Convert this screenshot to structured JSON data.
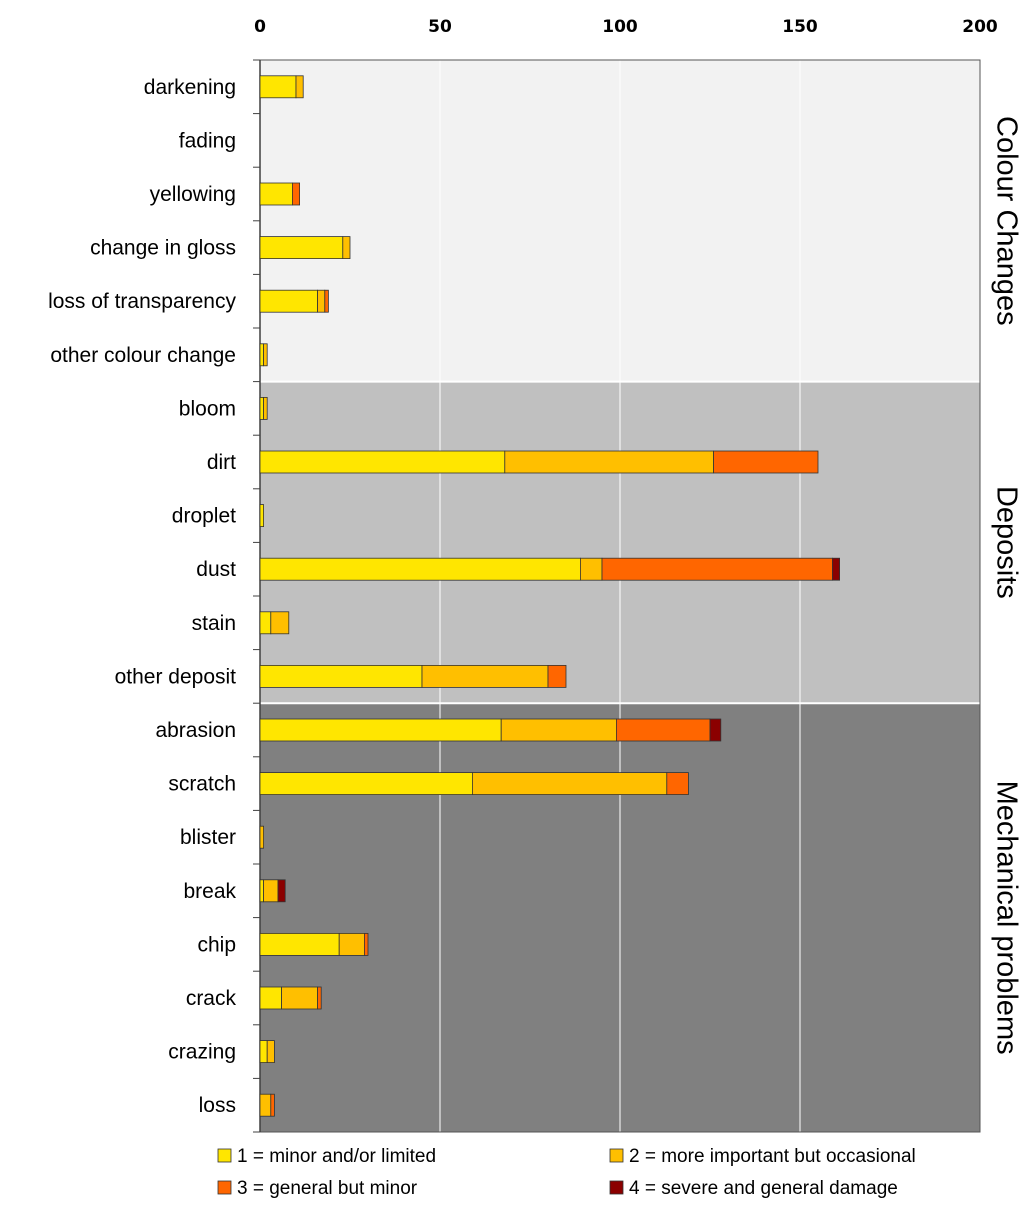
{
  "chart_data": {
    "type": "bar",
    "orientation": "horizontal",
    "stacked": true,
    "xlim": [
      0,
      200
    ],
    "x_ticks": [
      "0",
      "50",
      "100",
      "150",
      "200"
    ],
    "x_axis_position": "top",
    "grid": true,
    "categories": [
      "darkening",
      "fading",
      "yellowing",
      "change in gloss",
      "loss of transparency",
      "other colour change",
      "bloom",
      "dirt",
      "droplet",
      "dust",
      "stain",
      "other deposit",
      "abrasion",
      "scratch",
      "blister",
      "break",
      "chip",
      "crack",
      "crazing",
      "loss"
    ],
    "groups": [
      {
        "label": "Colour Changes",
        "start": 0,
        "end": 5,
        "background": "#f2f2f2"
      },
      {
        "label": "Deposits",
        "start": 6,
        "end": 11,
        "background": "#c0c0c0"
      },
      {
        "label": "Mechanical problems",
        "start": 12,
        "end": 19,
        "background": "#808080"
      }
    ],
    "series": [
      {
        "name": "1 = minor and/or limited",
        "color": "#ffe600",
        "values": [
          10,
          0,
          9,
          23,
          16,
          1,
          1,
          68,
          1,
          89,
          3,
          45,
          67,
          59,
          0,
          1,
          22,
          6,
          2,
          0
        ]
      },
      {
        "name": "2 = more important but occasional",
        "color": "#ffbf00",
        "values": [
          2,
          0,
          0,
          2,
          2,
          1,
          1,
          58,
          0,
          6,
          5,
          35,
          32,
          54,
          1,
          4,
          7,
          10,
          2,
          3
        ]
      },
      {
        "name": "3 = general but minor",
        "color": "#ff6600",
        "values": [
          0,
          0,
          2,
          0,
          1,
          0,
          0,
          29,
          0,
          64,
          0,
          5,
          26,
          6,
          0,
          0,
          1,
          1,
          0,
          1
        ]
      },
      {
        "name": "4 = severe and general damage",
        "color": "#8b0000",
        "values": [
          0,
          0,
          0,
          0,
          0,
          0,
          0,
          0,
          0,
          2,
          0,
          0,
          3,
          0,
          0,
          2,
          0,
          0,
          0,
          0
        ]
      }
    ],
    "legend_position": "bottom"
  }
}
